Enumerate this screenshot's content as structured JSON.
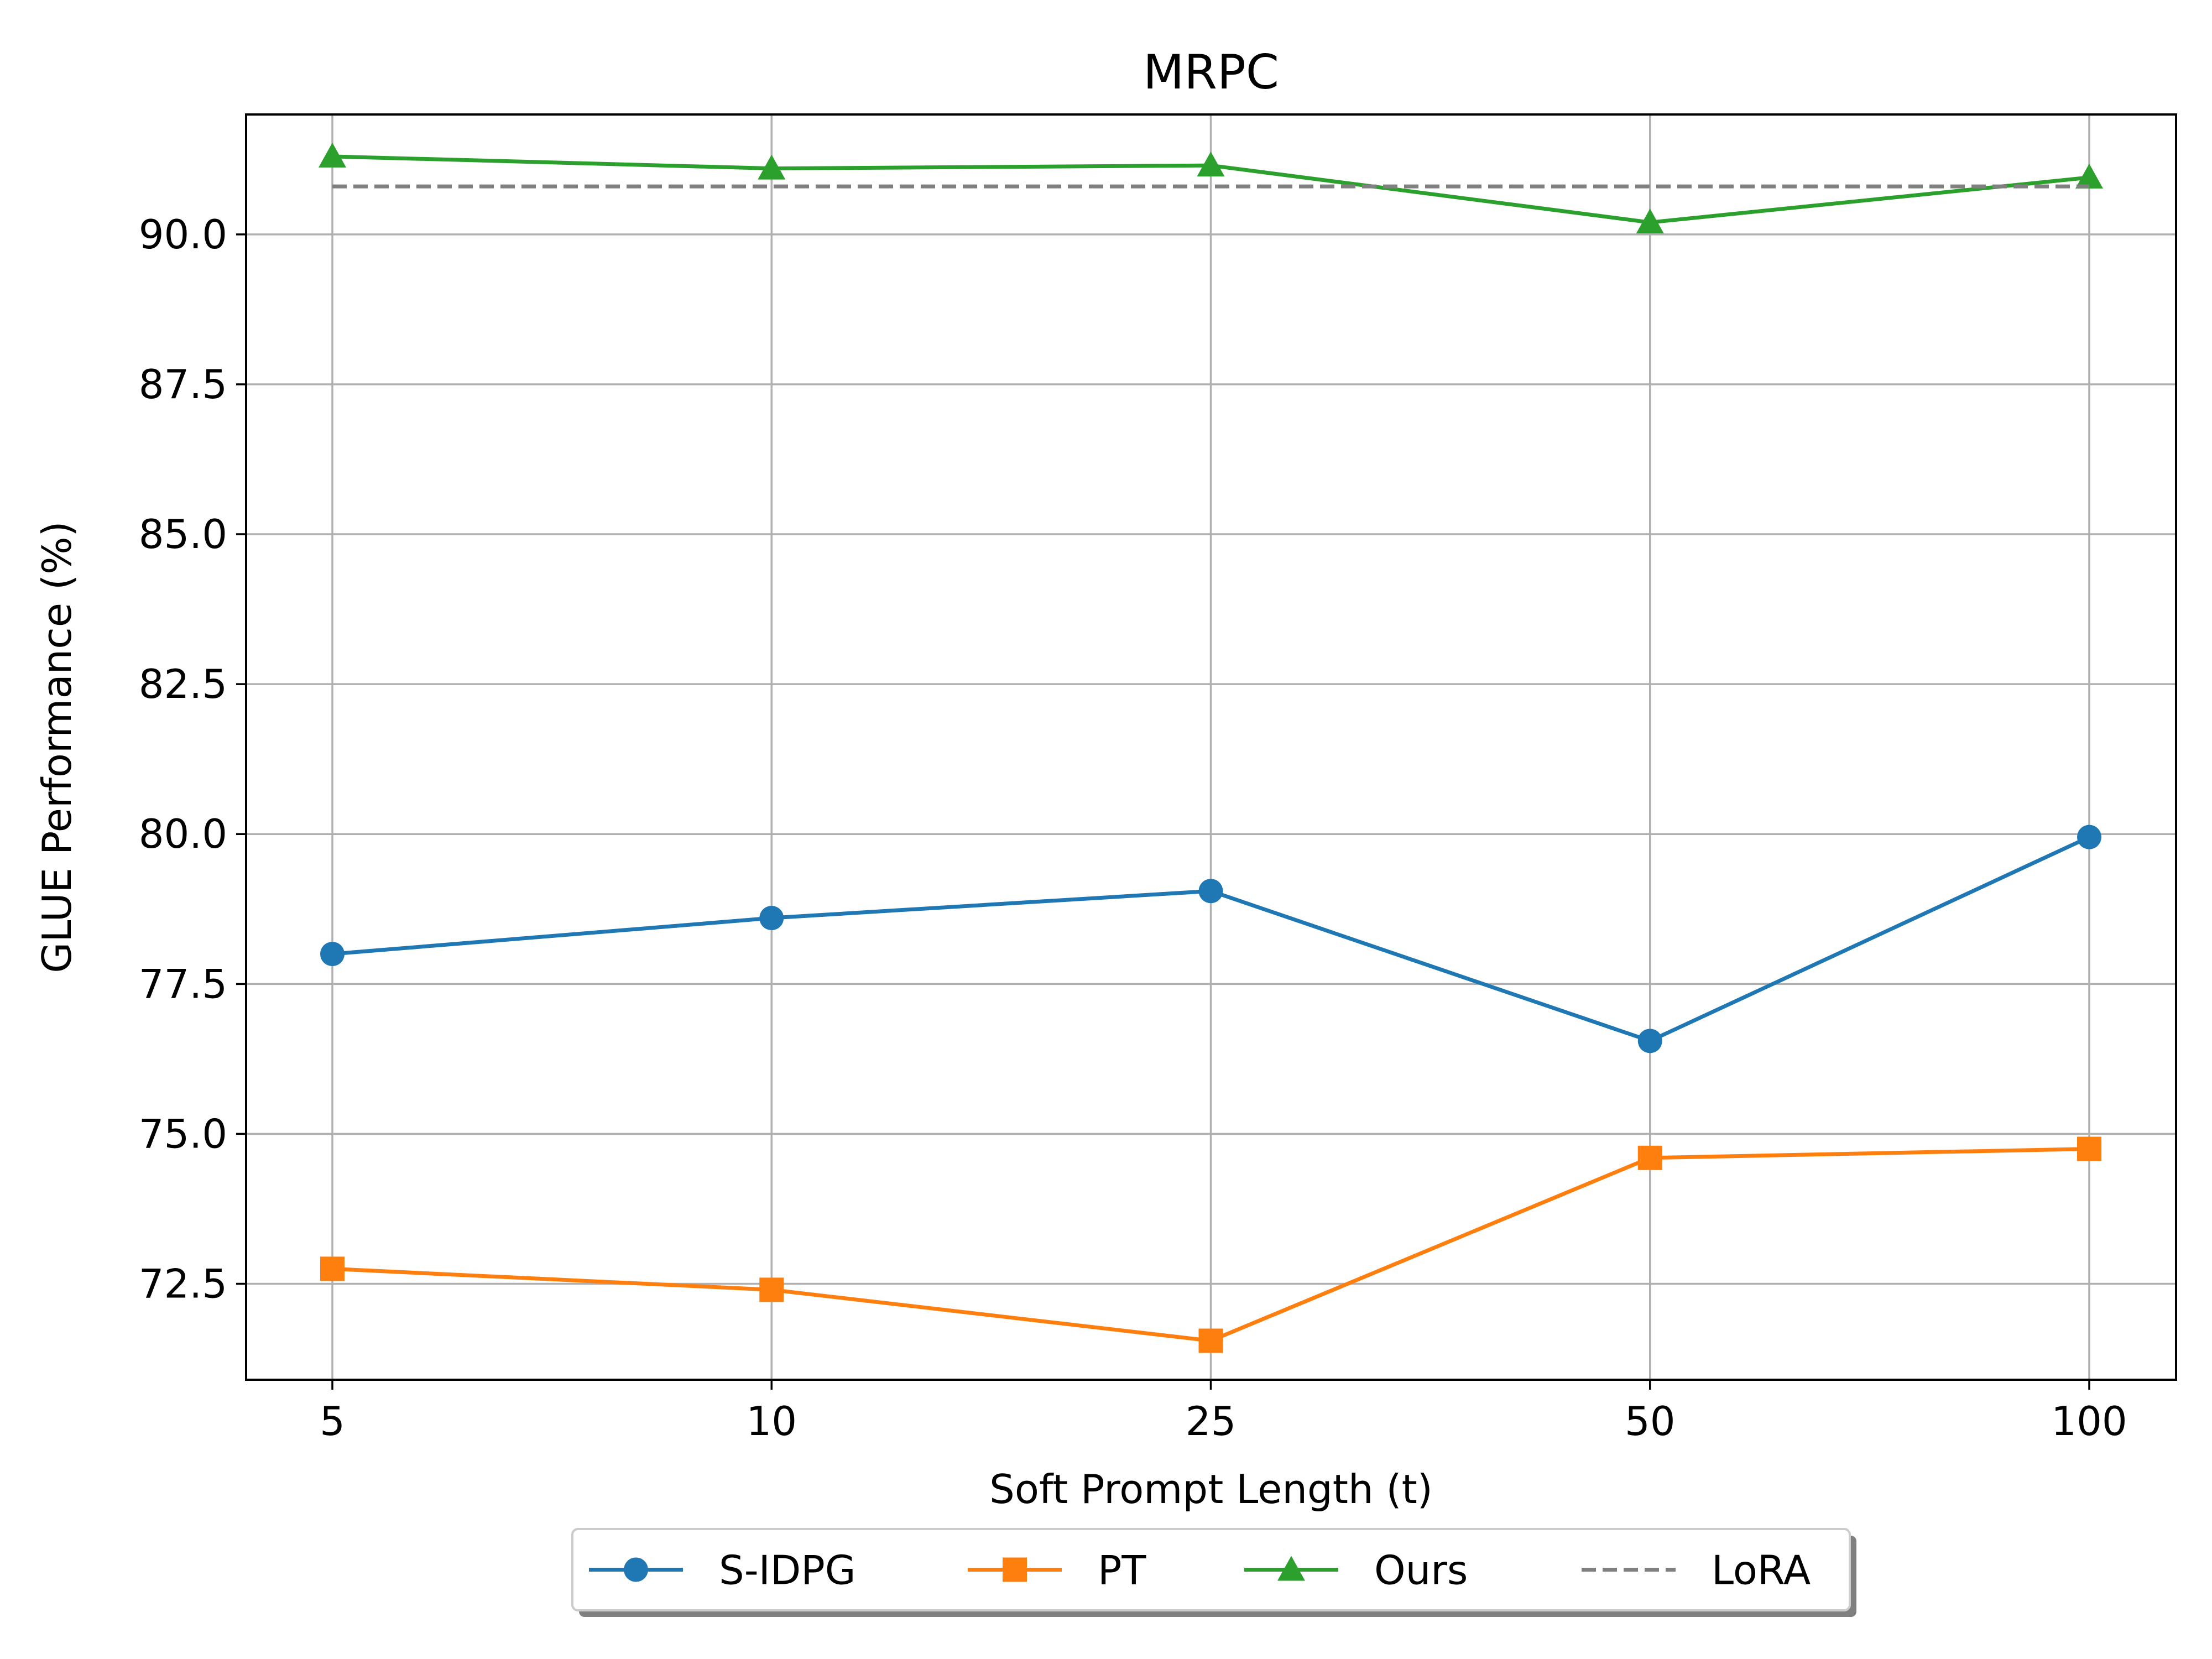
{
  "chart_data": {
    "type": "line",
    "title": "MRPC",
    "xlabel": "Soft Prompt Length (t)",
    "ylabel": "GLUE Performance (%)",
    "categories": [
      "5",
      "10",
      "25",
      "50",
      "100"
    ],
    "ylim": [
      70.9,
      92.0
    ],
    "yticks": [
      "72.5",
      "75.0",
      "77.5",
      "80.0",
      "82.5",
      "85.0",
      "87.5",
      "90.0"
    ],
    "grid": true,
    "legend_position": "bottom-center",
    "series": [
      {
        "name": "S-IDPG",
        "values": [
          78.0,
          78.6,
          79.05,
          76.55,
          79.95
        ],
        "color": "#1f77b4",
        "marker": "circle",
        "style": "solid"
      },
      {
        "name": "PT",
        "values": [
          72.75,
          72.4,
          71.55,
          74.6,
          74.75
        ],
        "color": "#ff7f0e",
        "marker": "square",
        "style": "solid"
      },
      {
        "name": "Ours",
        "values": [
          91.3,
          91.1,
          91.15,
          90.2,
          90.95
        ],
        "color": "#2ca02c",
        "marker": "triangle",
        "style": "solid"
      },
      {
        "name": "LoRA",
        "values": [
          90.8,
          90.8,
          90.8,
          90.8,
          90.8
        ],
        "color": "#808080",
        "marker": "none",
        "style": "dashed"
      }
    ]
  }
}
